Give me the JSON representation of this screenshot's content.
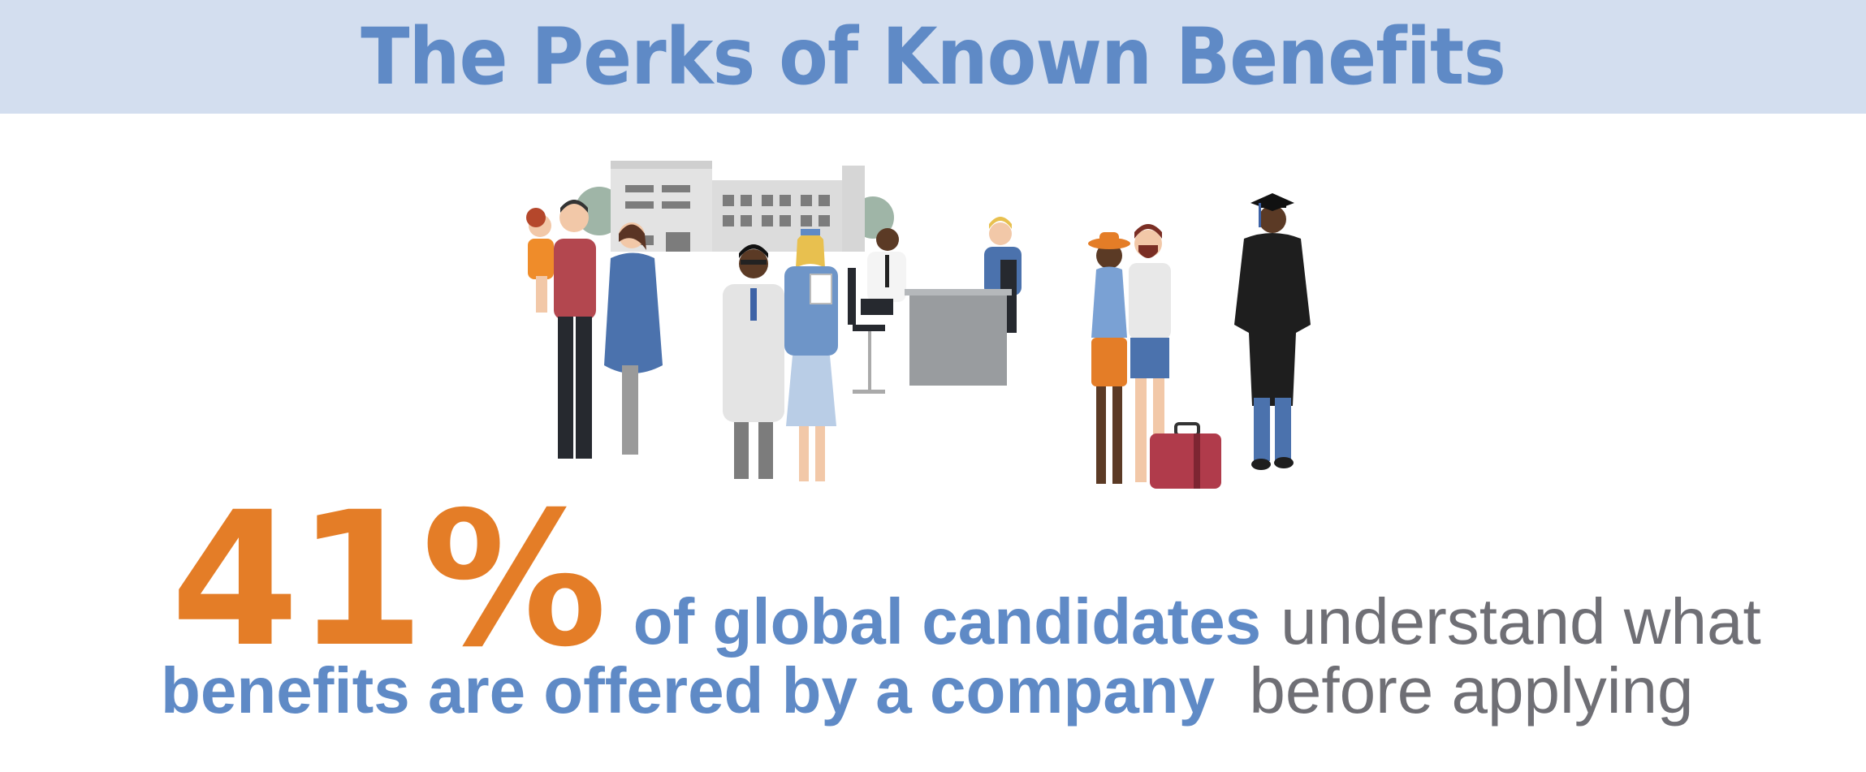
{
  "header": {
    "title": "The Perks of Known Benefits"
  },
  "stat": {
    "value": "41%",
    "line1_highlight": "of global candidates",
    "line1_rest": "understand what",
    "line2_highlight": "benefits are offered by a company",
    "line2_rest": "before applying"
  },
  "colors": {
    "accent_orange": "#e47d27",
    "accent_blue": "#5f8ac6",
    "banner_bg": "#d3deef",
    "body_gray": "#6f6f75"
  },
  "illustration": {
    "icons": [
      "family-icon",
      "hospital-building-icon",
      "doctor-icon",
      "nurse-icon",
      "office-desk-icon",
      "travelers-icon",
      "suitcase-icon",
      "graduate-icon"
    ]
  }
}
